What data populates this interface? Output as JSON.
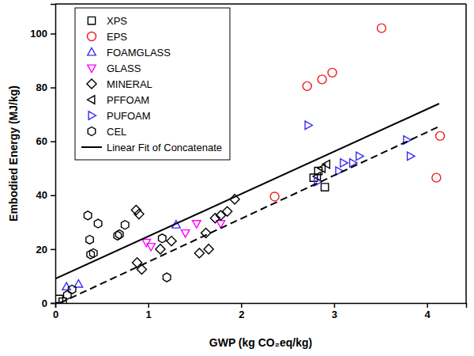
{
  "chart_data": {
    "type": "scatter",
    "x_label": "GWP (kg CO₂eq/kg)",
    "y_label": "Embodied Energy (MJ/kg)",
    "xlim": [
      0,
      4.42
    ],
    "ylim": [
      0,
      111
    ],
    "xticks": [
      0,
      1,
      2,
      3,
      4
    ],
    "yticks": [
      0,
      20,
      40,
      60,
      80,
      100
    ],
    "grid": false,
    "legend": "upper left",
    "series": [
      {
        "name": "XPS",
        "color": "#000000",
        "marker": "square",
        "x": [
          0.04,
          0.08,
          2.78,
          2.83,
          2.9
        ],
        "values": [
          1.5,
          0.5,
          46.5,
          49,
          43
        ]
      },
      {
        "name": "EPS",
        "color": "#ee1c1c",
        "marker": "circle",
        "x": [
          2.36,
          2.71,
          2.87,
          2.98,
          3.51,
          4.1,
          4.14
        ],
        "values": [
          39.5,
          80.5,
          83,
          85.5,
          102,
          46.5,
          62
        ]
      },
      {
        "name": "FOAMGLASS",
        "color": "#3a2cf0",
        "marker": "triangle-up",
        "x": [
          0.12,
          0.25,
          1.3
        ],
        "values": [
          6,
          7,
          29
        ]
      },
      {
        "name": "GLASS",
        "color": "#ff00ff",
        "marker": "triangle-down",
        "x": [
          0.98,
          1.03,
          1.4,
          1.52,
          1.78
        ],
        "values": [
          22.5,
          21,
          26,
          29.5,
          29.5
        ]
      },
      {
        "name": "MINERAL",
        "color": "#000000",
        "marker": "diamond",
        "x": [
          0.87,
          0.9,
          0.88,
          0.93,
          1.13,
          1.25,
          1.55,
          1.62,
          1.65,
          1.72,
          1.78,
          1.85,
          1.93
        ],
        "values": [
          34.5,
          33,
          15,
          12.5,
          20,
          23,
          18.5,
          26,
          20,
          31.5,
          32.5,
          34,
          38.5
        ]
      },
      {
        "name": "PFFOAM",
        "color": "#000000",
        "marker": "triangle-left",
        "x": [
          2.82,
          2.87,
          2.92
        ],
        "values": [
          47,
          50,
          51.5
        ]
      },
      {
        "name": "PUFOAM",
        "color": "#3a2cf0",
        "marker": "triangle-right",
        "x": [
          2.72,
          2.82,
          3.05,
          3.1,
          3.2,
          3.27,
          3.78,
          3.82
        ],
        "values": [
          66,
          45,
          49,
          52,
          52,
          54.5,
          60.5,
          54.5
        ]
      },
      {
        "name": "CEL",
        "color": "#000000",
        "marker": "hexagon",
        "x": [
          0.13,
          0.18,
          0.35,
          0.37,
          0.38,
          0.41,
          0.46,
          0.67,
          0.69,
          0.75,
          1.15,
          1.2
        ],
        "values": [
          3,
          5,
          32.5,
          23.5,
          18,
          18.5,
          29.5,
          25,
          25.5,
          29,
          24,
          9.5
        ]
      },
      {
        "name": "Linear Fit of Concatenate",
        "color": "#000000",
        "type": "line",
        "line_style": "solid",
        "x": [
          0,
          4.13
        ],
        "values": [
          9,
          74
        ]
      },
      {
        "color": "#000000",
        "type": "line",
        "line_style": "dashed",
        "x": [
          0.05,
          4.13
        ],
        "values": [
          0,
          65.5
        ]
      }
    ]
  }
}
